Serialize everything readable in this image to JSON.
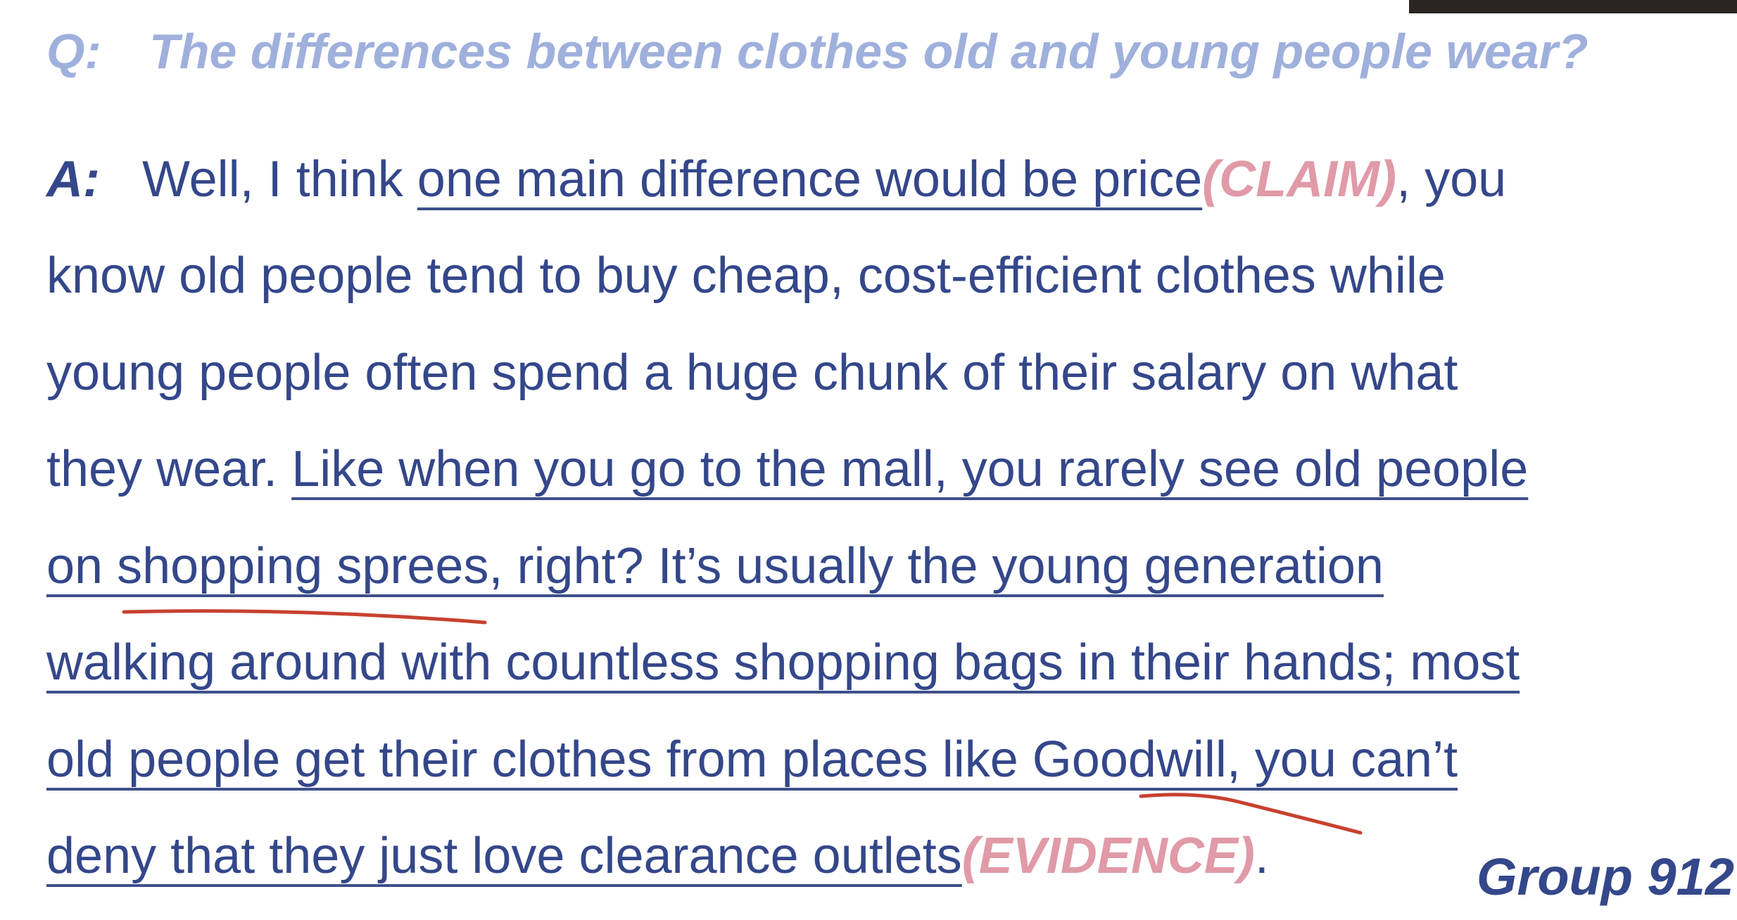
{
  "question": {
    "label": "Q:",
    "text": "The differences between clothes old and young people wear?"
  },
  "answer": {
    "label": "A:",
    "lines": [
      [
        "Well, I think ",
        "one main difference would be price",
        "(CLAIM)",
        ", you"
      ],
      [
        "know old people tend to buy cheap, cost-efficient clothes while"
      ],
      [
        "young people often spend a huge chunk of their salary on what"
      ],
      [
        "they wear. ",
        "Like when you go to the mall, you rarely see old people"
      ],
      [
        "on shopping sprees, right? It’s usually the young generation"
      ],
      [
        "walking around with countless shopping bags in their hands; most"
      ],
      [
        "old people get their clothes from places like Goodwill, you can’t"
      ],
      [
        "deny that they just love clearance outlets",
        "(EVIDENCE)",
        "."
      ]
    ]
  },
  "footer": {
    "group": "Group 912"
  }
}
